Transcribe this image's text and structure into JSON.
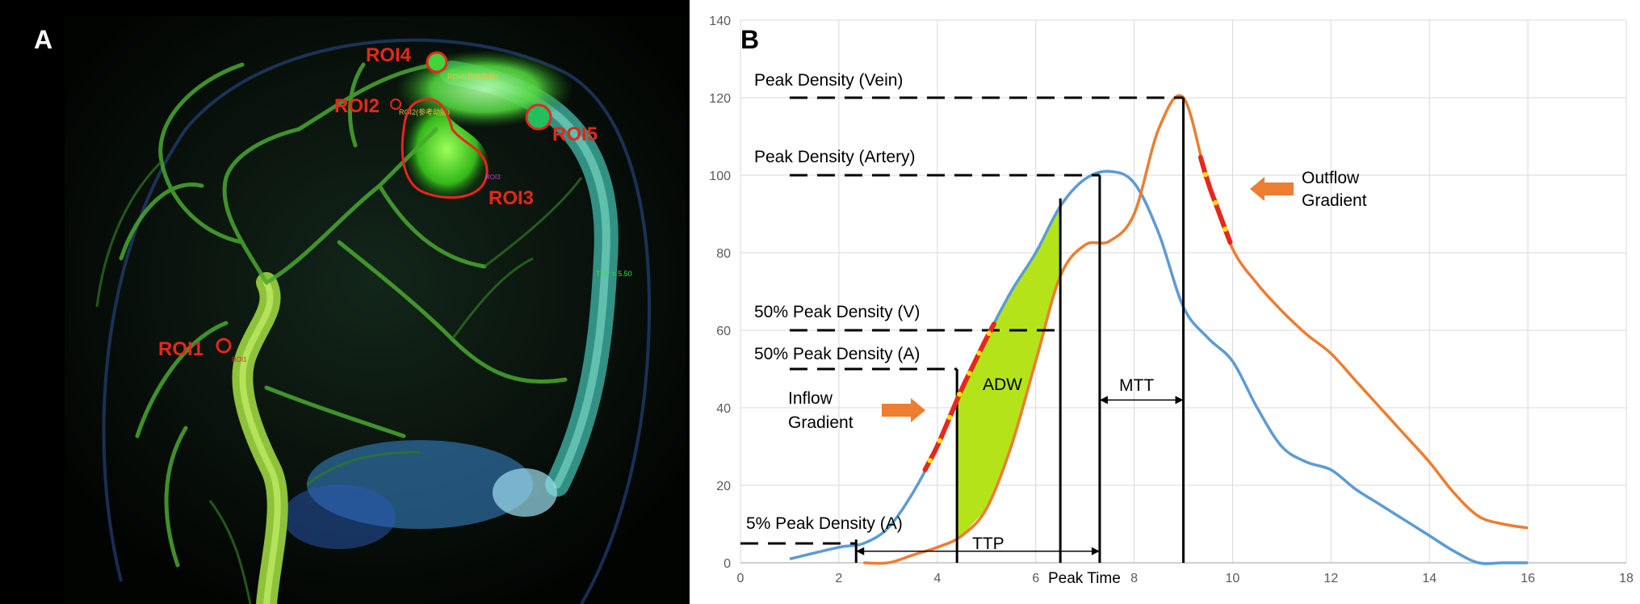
{
  "panel_a": {
    "label": "A",
    "rois": [
      {
        "label": "ROI1",
        "sublabel": "ROI1"
      },
      {
        "label": "ROI2",
        "sublabel": "ROI2(参考动脉)"
      },
      {
        "label": "ROI3",
        "sublabel": "ROI3"
      },
      {
        "label": "ROI4",
        "sublabel": "ROI4(参考静脉)"
      },
      {
        "label": "ROI5",
        "sublabel": ""
      }
    ],
    "ttp_readout": "TTP = 5.50",
    "colors": {
      "roi": "#e8261c",
      "vessel": "#3fbf2a",
      "background": "#000000"
    }
  },
  "panel_b": {
    "label": "B",
    "annotations": {
      "peak_vein": "Peak Density (Vein)",
      "peak_artery": "Peak Density (Artery)",
      "half_peak_v": "50% Peak Density (V)",
      "half_peak_a": "50% Peak Density (A)",
      "five_pct_a": "5% Peak Density (A)",
      "inflow_line1": "Inflow",
      "inflow_line2": "Gradient",
      "outflow_line1": "Outflow",
      "outflow_line2": "Gradient",
      "adw": "ADW",
      "mtt": "MTT",
      "ttp": "TTP",
      "peak_time": "Peak Time"
    },
    "colors": {
      "artery": "#5b9bd5",
      "vein": "#ed7d31",
      "adw_fill": "#b5e31a",
      "gradient": "#e8261c",
      "gradient_dots": "#ffe600",
      "arrow": "#ed7d31"
    }
  },
  "chart_data": {
    "type": "line",
    "xlim": [
      0,
      18
    ],
    "ylim": [
      0,
      140
    ],
    "x_ticks": [
      "0",
      "2",
      "4",
      "6",
      "8",
      "10",
      "12",
      "14",
      "16",
      "18"
    ],
    "y_ticks": [
      "0",
      "20",
      "40",
      "60",
      "80",
      "100",
      "120",
      "140"
    ],
    "grid": true,
    "series": [
      {
        "color": "#5b9bd5",
        "x": [
          1,
          2,
          2.5,
          3,
          3.5,
          4,
          4.5,
          5,
          5.5,
          6,
          6.5,
          7,
          7.5,
          8,
          8.5,
          9,
          9.5,
          10,
          10.5,
          11,
          11.5,
          12,
          12.5,
          13,
          13.5,
          14,
          14.5,
          15,
          15.5,
          16
        ],
        "y": [
          1,
          4,
          5,
          9,
          18,
          30,
          45,
          58,
          70,
          80,
          92,
          99,
          101,
          98,
          85,
          66,
          58,
          52,
          40,
          30,
          26,
          24,
          19,
          15,
          11,
          7,
          3,
          0,
          0,
          0
        ]
      },
      {
        "color": "#ed7d31",
        "x": [
          2.5,
          3,
          3.5,
          4,
          4.5,
          5,
          5.5,
          6,
          6.5,
          7,
          7.5,
          8,
          8.5,
          9,
          9.5,
          10,
          10.5,
          11,
          11.5,
          12,
          12.5,
          13,
          13.5,
          14,
          14.5,
          15,
          15.5,
          16
        ],
        "y": [
          0,
          0,
          2,
          4,
          7,
          14,
          30,
          52,
          74,
          82,
          83,
          90,
          112,
          120,
          98,
          81,
          72,
          65,
          59,
          54,
          47,
          40,
          33,
          26,
          18,
          12,
          10,
          9
        ]
      }
    ]
  }
}
